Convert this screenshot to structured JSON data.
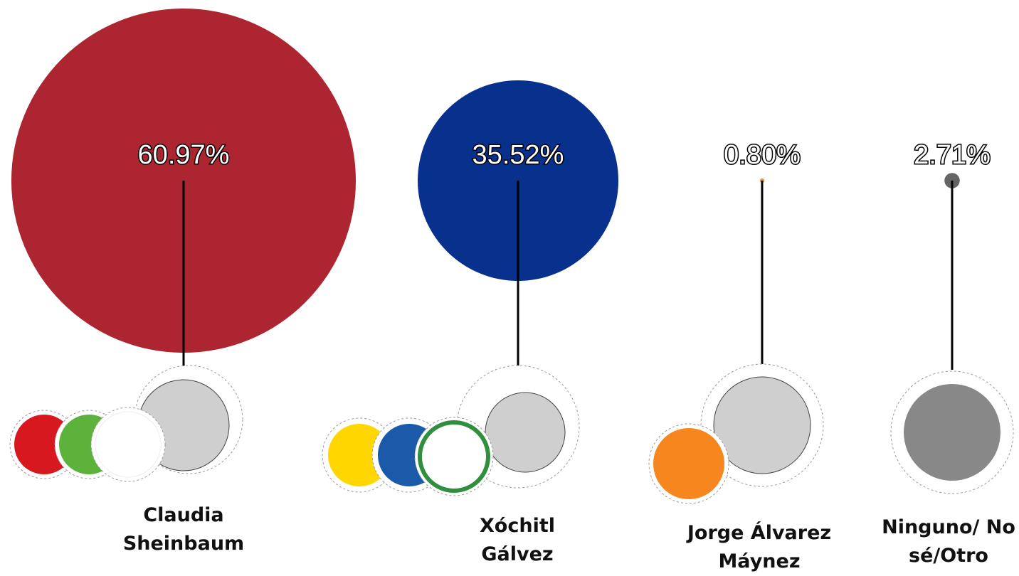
{
  "chart_data": {
    "type": "bubble",
    "categories": [
      "Claudia Sheinbaum",
      "Xóchitl Gálvez",
      "Jorge Álvarez Máynez",
      "Ninguno/ No sé/Otro"
    ],
    "values": [
      60.97,
      35.52,
      0.8,
      2.71
    ],
    "value_labels": [
      "60.97%",
      "35.52%",
      "0.80%",
      "2.71%"
    ],
    "colors": [
      "#ad2530",
      "#07318c",
      "#f7941d",
      "#646464"
    ]
  }
}
